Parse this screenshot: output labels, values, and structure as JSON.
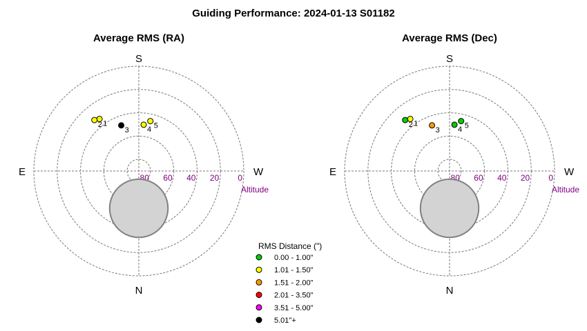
{
  "chart_data": {
    "type": "scatter",
    "projection": "polar-altaz",
    "title": "Guiding Performance: 2024-01-13 S01182",
    "altitude_label": "Altitude",
    "altitude_ticks": [
      80,
      60,
      40,
      20,
      0
    ],
    "rings_altitude": [
      80,
      60,
      40,
      20,
      0
    ],
    "directions": {
      "top": "S",
      "bottom": "N",
      "left": "E",
      "right": "W"
    },
    "grid": true,
    "legend_placement": "bottom-center",
    "legend": {
      "title": "RMS Distance (\")",
      "entries": [
        {
          "label": "0.00 - 1.00\"",
          "color": "#00cc00"
        },
        {
          "label": "1.01 - 1.50\"",
          "color": "#ffff00"
        },
        {
          "label": "1.51 - 2.00\"",
          "color": "#ff9900"
        },
        {
          "label": "2.01 - 3.50\"",
          "color": "#ff0000"
        },
        {
          "label": "3.51 - 5.00\"",
          "color": "#ff00ff"
        },
        {
          "label": "5.01\"+",
          "color": "#000000"
        }
      ]
    },
    "obstruction": {
      "azimuth_deg": 0,
      "altitude_deg": 58,
      "radius_alt_deg": 25
    },
    "panels": [
      {
        "subtitle": "Average RMS (RA)",
        "points": [
          {
            "label": "1",
            "azimuth_deg": 143,
            "altitude_deg": 34,
            "color": "#ffff00"
          },
          {
            "label": "2",
            "azimuth_deg": 139,
            "altitude_deg": 32,
            "color": "#ffff00"
          },
          {
            "label": "3",
            "azimuth_deg": 159,
            "altitude_deg": 48,
            "color": "#000000"
          },
          {
            "label": "4",
            "azimuth_deg": 186,
            "altitude_deg": 50,
            "color": "#ffff00"
          },
          {
            "label": "5",
            "azimuth_deg": 193,
            "altitude_deg": 46,
            "color": "#ffff00"
          }
        ]
      },
      {
        "subtitle": "Average RMS (Dec)",
        "points": [
          {
            "label": "1",
            "azimuth_deg": 143,
            "altitude_deg": 34,
            "color": "#ffff00"
          },
          {
            "label": "2",
            "azimuth_deg": 139,
            "altitude_deg": 32,
            "color": "#00cc00"
          },
          {
            "label": "3",
            "azimuth_deg": 159,
            "altitude_deg": 48,
            "color": "#ff9900"
          },
          {
            "label": "4",
            "azimuth_deg": 186,
            "altitude_deg": 50,
            "color": "#00cc00"
          },
          {
            "label": "5",
            "azimuth_deg": 193,
            "altitude_deg": 46,
            "color": "#00cc00"
          }
        ]
      }
    ]
  }
}
